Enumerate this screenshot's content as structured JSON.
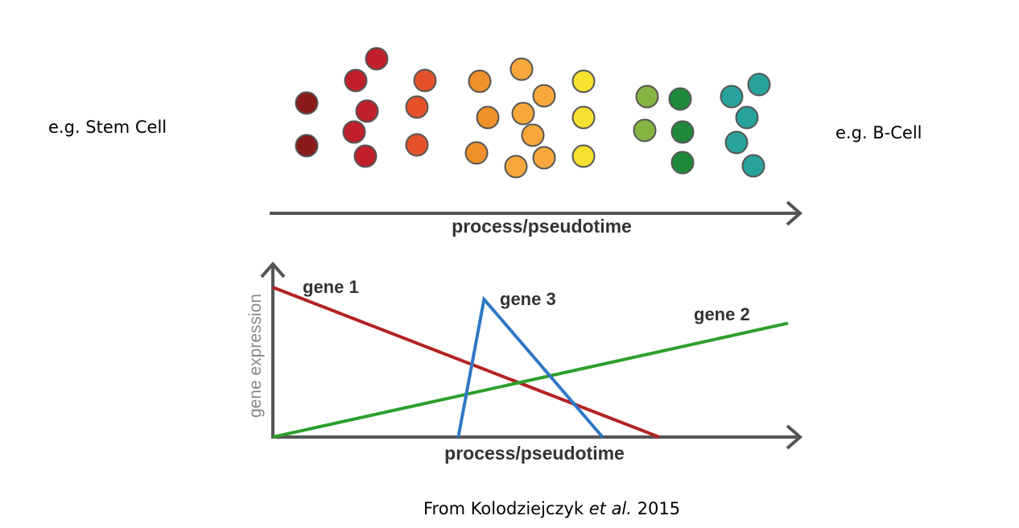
{
  "labels": {
    "start": "e.g. Stem Cell",
    "end": "e.g. B-Cell",
    "citation_prefix": "From Kolodziejczyk ",
    "citation_italic": "et al.",
    "citation_suffix": " 2015"
  },
  "top_axis": {
    "label": "process/pseudotime"
  },
  "cell_groups": [
    {
      "name": "dark-red",
      "color": "#8b1a1a"
    },
    {
      "name": "red",
      "color": "#c0202a"
    },
    {
      "name": "red-orange",
      "color": "#e4512a"
    },
    {
      "name": "orange",
      "color": "#f0902a"
    },
    {
      "name": "light-orange",
      "color": "#f7a83c"
    },
    {
      "name": "yellow",
      "color": "#f6e030"
    },
    {
      "name": "light-green",
      "color": "#86b443"
    },
    {
      "name": "green",
      "color": "#1f8a3a"
    },
    {
      "name": "teal",
      "color": "#27a39b"
    }
  ],
  "chart_data": {
    "type": "line",
    "xlabel": "process/pseudotime",
    "ylabel": "gene expression",
    "series": [
      {
        "name": "gene 1",
        "color": "#b22222",
        "x": [
          0,
          0.75
        ],
        "y": [
          1.0,
          0.0
        ]
      },
      {
        "name": "gene 2",
        "color": "#2ca02c",
        "x": [
          0,
          1.0
        ],
        "y": [
          0.0,
          0.76
        ]
      },
      {
        "name": "gene 3",
        "color": "#2f78c4",
        "x": [
          0.36,
          0.41,
          0.64
        ],
        "y": [
          0.0,
          0.92,
          0.0
        ]
      }
    ]
  }
}
